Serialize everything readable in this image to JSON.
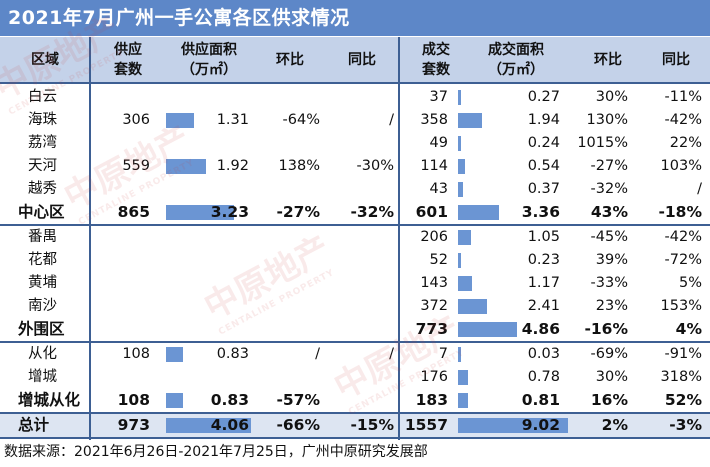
{
  "title": "2021年7月广州一手公寓各区供求情况",
  "headers": {
    "district": "区域",
    "supply_units": "供应\n套数",
    "supply_area": "供应面积\n（万㎡）",
    "supply_mom": "环比",
    "supply_yoy": "同比",
    "deal_units": "成交\n套数",
    "deal_area": "成交面积\n（万㎡）",
    "deal_mom": "环比",
    "deal_yoy": "同比"
  },
  "rows": [
    {
      "name": "白云",
      "su": "",
      "sa": "",
      "sa_val": null,
      "smom": "",
      "syoy": "",
      "du": "37",
      "da": "0.27",
      "da_val": 0.27,
      "dmom": "30%",
      "dyoy": "-11%"
    },
    {
      "name": "海珠",
      "su": "306",
      "sa": "1.31",
      "sa_val": 1.31,
      "smom": "-64%",
      "syoy": "/",
      "du": "358",
      "da": "1.94",
      "da_val": 1.94,
      "dmom": "130%",
      "dyoy": "-42%"
    },
    {
      "name": "荔湾",
      "su": "",
      "sa": "",
      "sa_val": null,
      "smom": "",
      "syoy": "",
      "du": "49",
      "da": "0.24",
      "da_val": 0.24,
      "dmom": "1015%",
      "dyoy": "22%"
    },
    {
      "name": "天河",
      "su": "559",
      "sa": "1.92",
      "sa_val": 1.92,
      "smom": "138%",
      "syoy": "-30%",
      "du": "114",
      "da": "0.54",
      "da_val": 0.54,
      "dmom": "-27%",
      "dyoy": "103%"
    },
    {
      "name": "越秀",
      "su": "",
      "sa": "",
      "sa_val": null,
      "smom": "",
      "syoy": "",
      "du": "43",
      "da": "0.37",
      "da_val": 0.37,
      "dmom": "-32%",
      "dyoy": "/"
    },
    {
      "name": "中心区",
      "subtotal": true,
      "su": "865",
      "sa": "3.23",
      "sa_val": 3.23,
      "smom": "-27%",
      "syoy": "-32%",
      "du": "601",
      "da": "3.36",
      "da_val": 3.36,
      "dmom": "43%",
      "dyoy": "-18%"
    },
    {
      "name": "番禺",
      "su": "",
      "sa": "",
      "sa_val": null,
      "smom": "",
      "syoy": "",
      "du": "206",
      "da": "1.05",
      "da_val": 1.05,
      "dmom": "-45%",
      "dyoy": "-42%"
    },
    {
      "name": "花都",
      "su": "",
      "sa": "",
      "sa_val": null,
      "smom": "",
      "syoy": "",
      "du": "52",
      "da": "0.23",
      "da_val": 0.23,
      "dmom": "39%",
      "dyoy": "-72%"
    },
    {
      "name": "黄埔",
      "su": "",
      "sa": "",
      "sa_val": null,
      "smom": "",
      "syoy": "",
      "du": "143",
      "da": "1.17",
      "da_val": 1.17,
      "dmom": "-33%",
      "dyoy": "5%"
    },
    {
      "name": "南沙",
      "su": "",
      "sa": "",
      "sa_val": null,
      "smom": "",
      "syoy": "",
      "du": "372",
      "da": "2.41",
      "da_val": 2.41,
      "dmom": "23%",
      "dyoy": "153%"
    },
    {
      "name": "外围区",
      "subtotal": true,
      "su": "",
      "sa": "",
      "sa_val": null,
      "smom": "",
      "syoy": "",
      "du": "773",
      "da": "4.86",
      "da_val": 4.86,
      "dmom": "-16%",
      "dyoy": "4%"
    },
    {
      "name": "从化",
      "su": "108",
      "sa": "0.83",
      "sa_val": 0.83,
      "smom": "/",
      "syoy": "/",
      "du": "7",
      "da": "0.03",
      "da_val": 0.03,
      "dmom": "-69%",
      "dyoy": "-91%"
    },
    {
      "name": "增城",
      "su": "",
      "sa": "",
      "sa_val": null,
      "smom": "",
      "syoy": "",
      "du": "176",
      "da": "0.78",
      "da_val": 0.78,
      "dmom": "30%",
      "dyoy": "318%"
    },
    {
      "name": "增城从化",
      "subtotal": true,
      "su": "108",
      "sa": "0.83",
      "sa_val": 0.83,
      "smom": "-57%",
      "syoy": "",
      "du": "183",
      "da": "0.81",
      "da_val": 0.81,
      "dmom": "16%",
      "dyoy": "52%"
    },
    {
      "name": "总计",
      "subtotal": true,
      "total": true,
      "su": "973",
      "sa": "4.06",
      "sa_val": 4.06,
      "smom": "-66%",
      "syoy": "-15%",
      "du": "1557",
      "da": "9.02",
      "da_val": 9.02,
      "dmom": "2%",
      "dyoy": "-3%"
    }
  ],
  "footer": "数据来源：2021年6月26日-2021年7月25日，广州中原研究发展部",
  "watermark": {
    "cn": "中原地产",
    "en": "CENTALINE PROPERTY"
  },
  "colors": {
    "title_bg": "#5d87c8",
    "header_bg": "#c4d2e9",
    "bar": "#6b95d3",
    "rule": "#3d5f93"
  }
}
